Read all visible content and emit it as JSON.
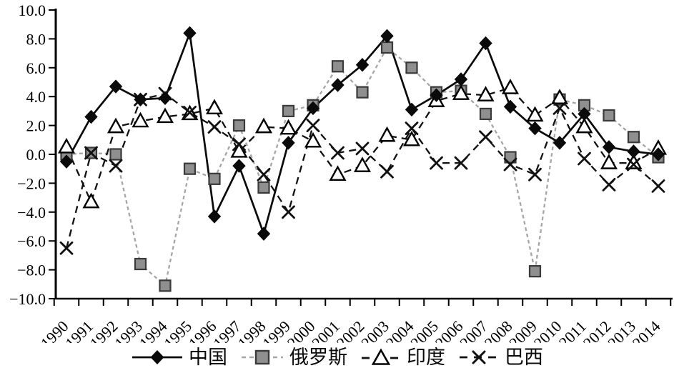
{
  "chart_data": {
    "type": "line",
    "title": "",
    "xlabel": "",
    "ylabel": "",
    "ylim": [
      -10,
      10
    ],
    "y_tick_step": 2,
    "grid": false,
    "legend_position": "bottom",
    "y_axis": {
      "tick_labels": [
        "10.0",
        "8.0",
        "6.0",
        "4.0",
        "2.0",
        "0.0",
        "−2.0",
        "−4.0",
        "−6.0",
        "−8.0",
        "−10.0"
      ]
    },
    "categories": [
      "1990",
      "1991",
      "1992",
      "1993",
      "1994",
      "1995",
      "1996",
      "1997",
      "1998",
      "1999",
      "2000",
      "2001",
      "2002",
      "2003",
      "2004",
      "2005",
      "2006",
      "2007",
      "2008",
      "2009",
      "2010",
      "2011",
      "2012",
      "2013",
      "2014"
    ],
    "series": [
      {
        "name": "中国",
        "marker": "diamond",
        "line_style": "solid",
        "color": "#0a0a0a",
        "marker_fill": "#0a0a0a",
        "values": [
          -0.5,
          2.6,
          4.7,
          3.8,
          3.9,
          8.4,
          -4.3,
          -0.8,
          -5.5,
          0.8,
          3.2,
          4.8,
          6.2,
          8.2,
          3.1,
          4.1,
          5.2,
          7.7,
          3.3,
          1.8,
          0.8,
          2.8,
          0.5,
          0.2,
          0.0
        ]
      },
      {
        "name": "俄罗斯",
        "marker": "square",
        "line_style": "dashed-short",
        "color": "#a6a6a6",
        "marker_fill": "#8f8f8f",
        "marker_stroke": "#3a3a3a",
        "values": [
          0.0,
          0.1,
          0.0,
          -7.6,
          -9.1,
          -1.0,
          -1.7,
          2.0,
          -2.3,
          3.0,
          3.4,
          6.1,
          4.3,
          7.4,
          6.0,
          4.3,
          4.4,
          2.8,
          -0.2,
          -8.1,
          3.8,
          3.4,
          2.7,
          1.2,
          -0.2
        ]
      },
      {
        "name": "印度",
        "marker": "triangle",
        "line_style": "dashed",
        "color": "#111111",
        "marker_fill": "#ffffff",
        "marker_stroke": "#000000",
        "values": [
          0.5,
          -3.3,
          1.9,
          2.3,
          2.6,
          2.8,
          3.2,
          0.2,
          1.9,
          1.8,
          0.9,
          -1.4,
          -0.8,
          1.3,
          1.0,
          3.7,
          4.2,
          4.1,
          4.6,
          2.7,
          3.9,
          1.9,
          -0.6,
          -0.6,
          0.4
        ]
      },
      {
        "name": "巴西",
        "marker": "x",
        "line_style": "dashed",
        "color": "#111111",
        "values": [
          -6.5,
          0.1,
          -0.8,
          3.8,
          4.2,
          2.9,
          1.9,
          0.7,
          -1.4,
          -4.0,
          2.0,
          0.1,
          0.4,
          -1.2,
          1.8,
          -0.6,
          -0.6,
          1.2,
          -0.7,
          -1.4,
          3.2,
          -0.3,
          -2.1,
          -0.7,
          -2.2
        ]
      }
    ]
  }
}
